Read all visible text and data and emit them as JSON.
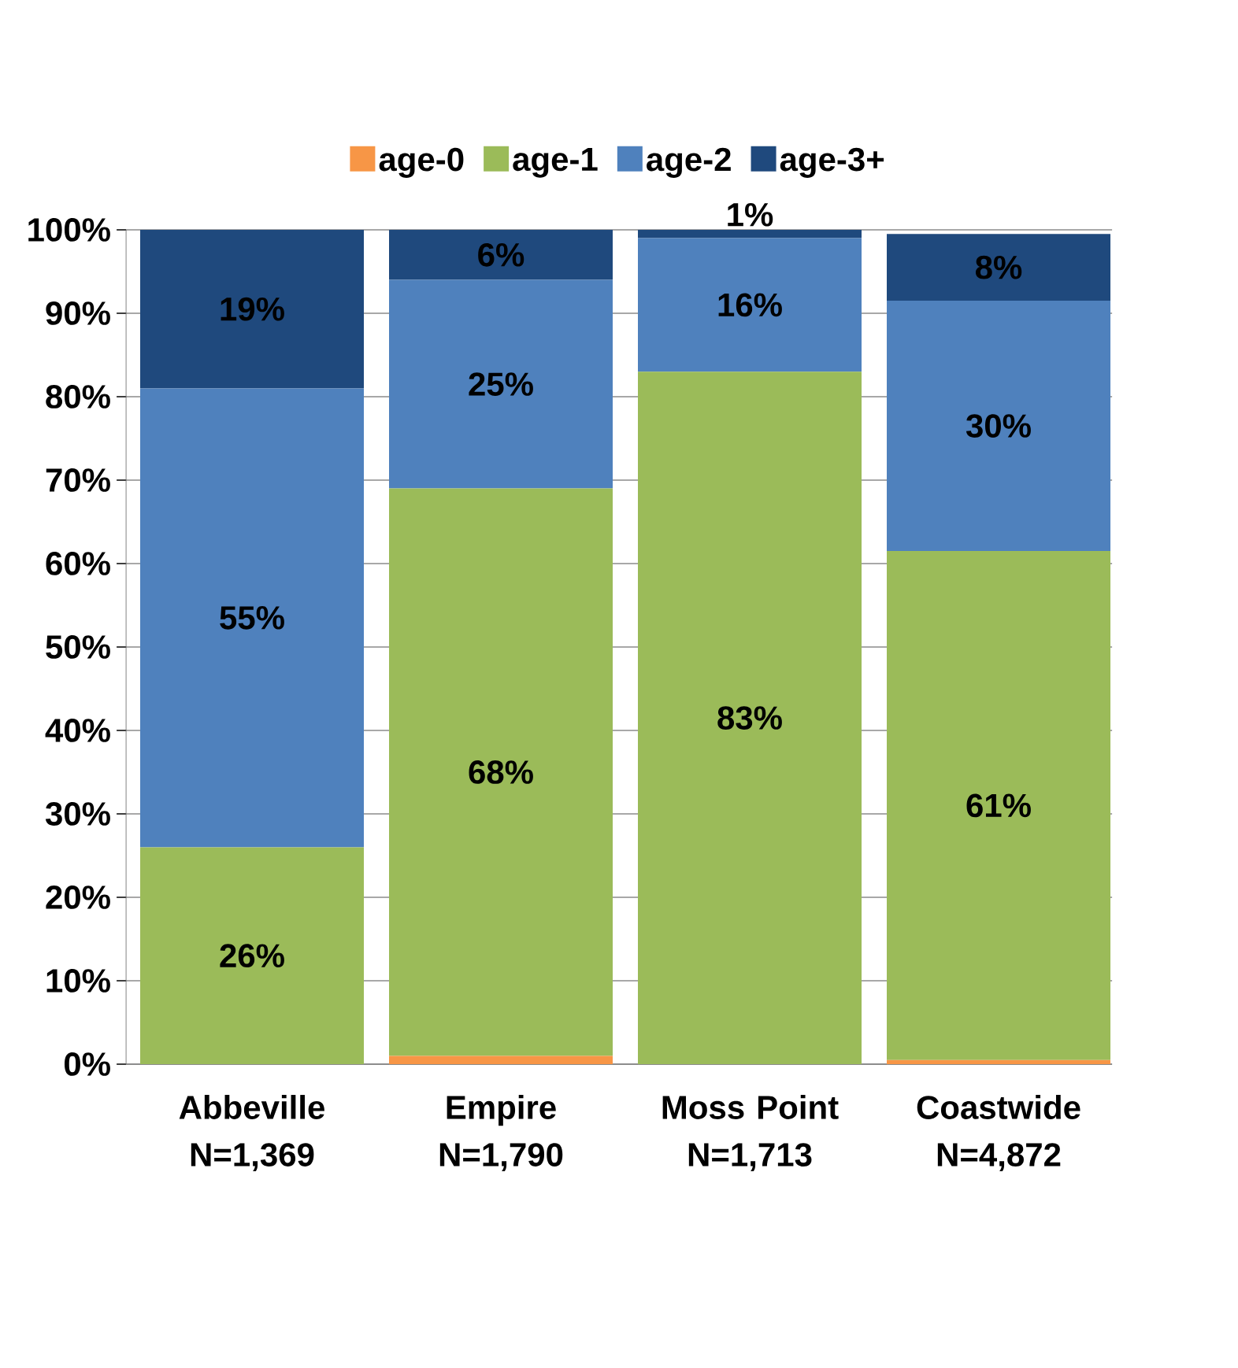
{
  "chart_data": {
    "type": "bar",
    "stacked": true,
    "legend": "top",
    "grid": "y",
    "categories": [
      "Abbeville N=1,369",
      "Empire N=1,790",
      "Moss Point N=1,713",
      "Coastwide N=4,872"
    ],
    "series": [
      {
        "name": "age-0",
        "color": "#f79646",
        "values": [
          0,
          1,
          0,
          0.5
        ],
        "value_labels": [
          null,
          null,
          null,
          null
        ]
      },
      {
        "name": "age-1",
        "color": "#9bbb59",
        "values": [
          26,
          68,
          83,
          61
        ],
        "value_labels": [
          "26%",
          "68%",
          "83%",
          "61%"
        ]
      },
      {
        "name": "age-2",
        "color": "#4f81bd",
        "values": [
          55,
          25,
          16,
          30
        ],
        "value_labels": [
          "55%",
          "25%",
          "16%",
          "30%"
        ]
      },
      {
        "name": "age-3+",
        "color": "#1f497d",
        "values": [
          19,
          6,
          1,
          8
        ],
        "value_labels": [
          "19%",
          "6%",
          "1%",
          "8%"
        ]
      }
    ],
    "ylim": [
      0,
      100
    ],
    "yticks": [
      {
        "value": 0,
        "label": "0%"
      },
      {
        "value": 10,
        "label": "10%"
      },
      {
        "value": 20,
        "label": "20%"
      },
      {
        "value": 30,
        "label": "30%"
      },
      {
        "value": 40,
        "label": "40%"
      },
      {
        "value": 50,
        "label": "50%"
      },
      {
        "value": 60,
        "label": "60%"
      },
      {
        "value": 70,
        "label": "70%"
      },
      {
        "value": 80,
        "label": "80%"
      },
      {
        "value": 90,
        "label": "90%"
      },
      {
        "value": 100,
        "label": "100%"
      }
    ]
  }
}
